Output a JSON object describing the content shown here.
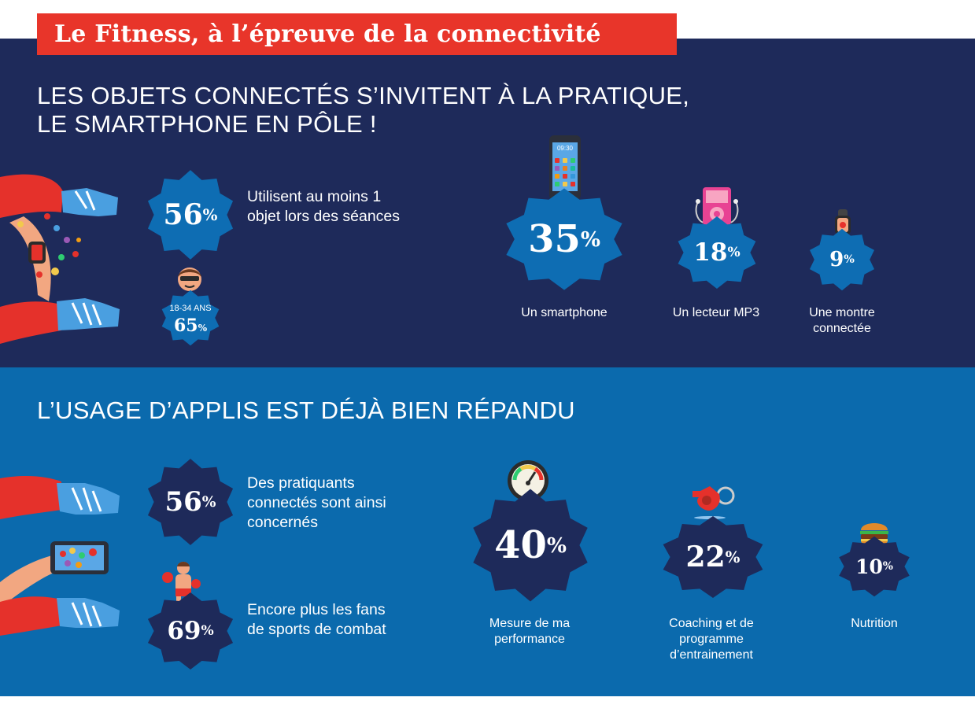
{
  "title": "Le Fitness, à l’épreuve de la connectivité",
  "colors": {
    "top_bg": "#1e2a5a",
    "bottom_bg": "#0b6aad",
    "title_bg": "#e8352a",
    "burst_light": "#0e6db3",
    "burst_dark": "#1e2a5a"
  },
  "section1": {
    "heading_line1": "LES OBJETS CONNECTÉS S’INVITENT À LA PRATIQUE,",
    "heading_line2": "LE SMARTPHONE EN PÔLE !",
    "main_stat": {
      "value": "56",
      "unit": "%",
      "text_line1": "Utilisent au moins 1",
      "text_line2": "objet lors des séances"
    },
    "age_stat": {
      "age": "18-34 ANS",
      "value": "65",
      "unit": "%"
    },
    "devices": [
      {
        "value": "35",
        "unit": "%",
        "label_line1": "Un smartphone",
        "label_line2": "",
        "icon": "smartphone-icon"
      },
      {
        "value": "18",
        "unit": "%",
        "label_line1": "Un lecteur MP3",
        "label_line2": "",
        "icon": "mp3-player-icon"
      },
      {
        "value": "9",
        "unit": "%",
        "label_line1": "Une montre",
        "label_line2": "connectée",
        "icon": "smartwatch-icon"
      }
    ],
    "phone_time": "09:30"
  },
  "section2": {
    "heading": "L’USAGE D’APPLIS EST DÉJÀ BIEN RÉPANDU",
    "stat1": {
      "value": "56",
      "unit": "%",
      "text_line1": "Des pratiquants",
      "text_line2": "connectés sont ainsi",
      "text_line3": "concernés"
    },
    "stat2": {
      "value": "69",
      "unit": "%",
      "text_line1": "Encore plus les fans",
      "text_line2": "de sports de combat"
    },
    "uses": [
      {
        "value": "40",
        "unit": "%",
        "label_line1": "Mesure de ma",
        "label_line2": "performance",
        "label_line3": "",
        "icon": "speedometer-icon"
      },
      {
        "value": "22",
        "unit": "%",
        "label_line1": "Coaching et de",
        "label_line2": "programme",
        "label_line3": "d’entrainement",
        "icon": "whistle-icon"
      },
      {
        "value": "10",
        "unit": "%",
        "label_line1": "Nutrition",
        "label_line2": "",
        "label_line3": "",
        "icon": "burger-icon"
      }
    ]
  }
}
